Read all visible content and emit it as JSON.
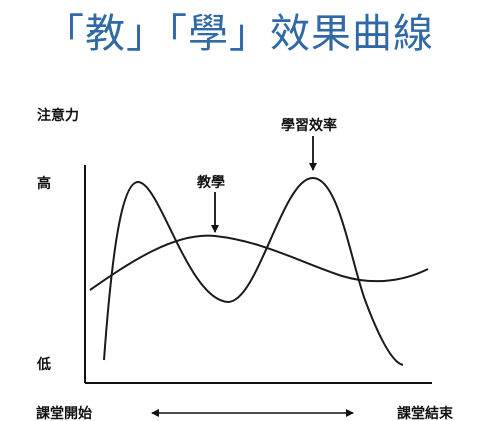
{
  "title": "「教」「學」效果曲線",
  "colors": {
    "title": "#2f69a6",
    "ink": "#111111",
    "background": "#ffffff"
  },
  "labels": {
    "y_axis": "注意力",
    "high": "高",
    "low": "低",
    "x_start": "課堂開始",
    "x_end": "課堂結束",
    "teaching": "教學",
    "learning_efficiency": "學習效率"
  }
}
